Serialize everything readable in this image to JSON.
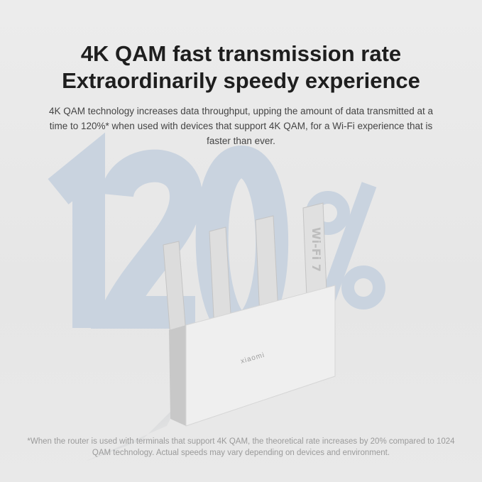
{
  "heading": {
    "line1": "4K QAM fast transmission rate",
    "line2": "Extraordinarily speedy experience"
  },
  "description": "4K QAM technology increases data throughput, upping the amount of data transmitted at a time to 120%* when used with devices that support 4K QAM, for a Wi-Fi experience that is faster than ever.",
  "background_figure": "120%",
  "product": {
    "brand_label": "xiaomi",
    "antenna_label": "Wi-Fi 7"
  },
  "footnote": "*When the router is used with terminals that support 4K QAM, the theoretical rate increases by 20% compared to 1024 QAM technology. Actual speeds may vary depending on devices and environment.",
  "colors": {
    "background": "#e8e8e8",
    "figure": "#c9d3df",
    "heading": "#1e1e1e"
  }
}
